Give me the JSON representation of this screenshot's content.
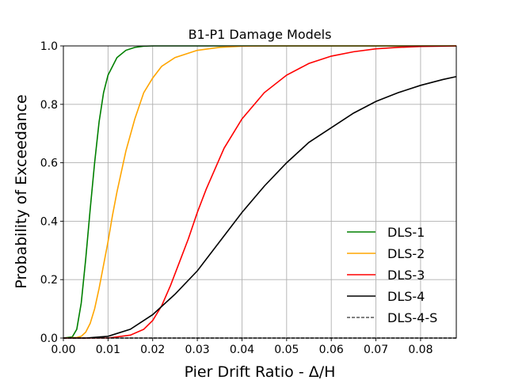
{
  "chart_data": {
    "type": "line",
    "title": "B1-P1 Damage Models",
    "xlabel": "Pier Drift Ratio - Δ/H",
    "ylabel": "Probability of Exceedance",
    "xlim": [
      0.0,
      0.088
    ],
    "ylim": [
      0.0,
      1.0
    ],
    "xticks": [
      0.0,
      0.01,
      0.02,
      0.03,
      0.04,
      0.05,
      0.06,
      0.07,
      0.08
    ],
    "xtick_labels": [
      "0.00",
      "0.01",
      "0.02",
      "0.03",
      "0.04",
      "0.05",
      "0.06",
      "0.07",
      "0.08"
    ],
    "yticks": [
      0.0,
      0.2,
      0.4,
      0.6,
      0.8,
      1.0
    ],
    "ytick_labels": [
      "0.0",
      "0.2",
      "0.4",
      "0.6",
      "0.8",
      "1.0"
    ],
    "grid": true,
    "legend_position": "lower-right",
    "series": [
      {
        "name": "DLS-1",
        "color": "#008000",
        "style": "solid",
        "x": [
          0.0,
          0.002,
          0.003,
          0.004,
          0.005,
          0.006,
          0.007,
          0.008,
          0.009,
          0.01,
          0.012,
          0.014,
          0.016,
          0.018,
          0.02,
          0.088
        ],
        "y": [
          0.0,
          0.004,
          0.03,
          0.12,
          0.27,
          0.44,
          0.6,
          0.74,
          0.84,
          0.9,
          0.96,
          0.985,
          0.995,
          0.999,
          1.0,
          1.0
        ]
      },
      {
        "name": "DLS-2",
        "color": "#FFA500",
        "style": "solid",
        "x": [
          0.0,
          0.003,
          0.004,
          0.005,
          0.006,
          0.007,
          0.008,
          0.009,
          0.01,
          0.011,
          0.012,
          0.013,
          0.014,
          0.016,
          0.018,
          0.02,
          0.022,
          0.025,
          0.03,
          0.035,
          0.04,
          0.045,
          0.088
        ],
        "y": [
          0.0,
          0.002,
          0.006,
          0.02,
          0.05,
          0.1,
          0.17,
          0.25,
          0.33,
          0.42,
          0.5,
          0.57,
          0.64,
          0.75,
          0.84,
          0.89,
          0.93,
          0.96,
          0.985,
          0.995,
          0.999,
          1.0,
          1.0
        ]
      },
      {
        "name": "DLS-3",
        "color": "#FF0000",
        "style": "solid",
        "x": [
          0.0,
          0.01,
          0.015,
          0.018,
          0.02,
          0.022,
          0.024,
          0.026,
          0.028,
          0.03,
          0.032,
          0.034,
          0.036,
          0.038,
          0.04,
          0.045,
          0.05,
          0.055,
          0.06,
          0.065,
          0.07,
          0.075,
          0.08,
          0.085,
          0.088
        ],
        "y": [
          0.0,
          0.0,
          0.01,
          0.03,
          0.06,
          0.11,
          0.18,
          0.26,
          0.34,
          0.43,
          0.51,
          0.58,
          0.65,
          0.7,
          0.75,
          0.84,
          0.9,
          0.94,
          0.965,
          0.98,
          0.99,
          0.995,
          0.998,
          0.999,
          1.0
        ]
      },
      {
        "name": "DLS-4",
        "color": "#000000",
        "style": "solid",
        "x": [
          0.0,
          0.005,
          0.01,
          0.015,
          0.02,
          0.025,
          0.03,
          0.035,
          0.04,
          0.045,
          0.05,
          0.055,
          0.06,
          0.065,
          0.07,
          0.075,
          0.08,
          0.085,
          0.088
        ],
        "y": [
          0.0,
          0.0,
          0.006,
          0.03,
          0.08,
          0.15,
          0.23,
          0.33,
          0.43,
          0.52,
          0.6,
          0.67,
          0.72,
          0.77,
          0.81,
          0.84,
          0.865,
          0.885,
          0.895
        ]
      },
      {
        "name": "DLS-4-S",
        "color": "#000000",
        "style": "dashed",
        "x": [
          0.0,
          0.088
        ],
        "y": [
          0.0,
          0.0
        ]
      }
    ]
  }
}
